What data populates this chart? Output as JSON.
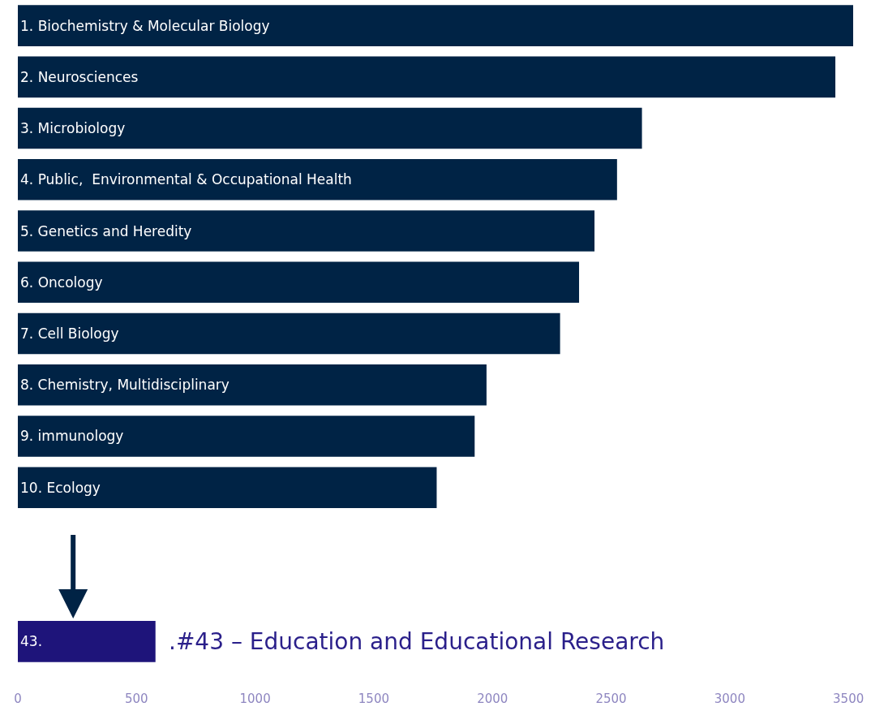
{
  "chart_data": {
    "type": "bar",
    "orientation": "horizontal",
    "categories": [
      "1. Biochemistry & Molecular Biology",
      "2. Neurosciences",
      "3. Microbiology",
      "4. Public,  Environmental & Occupational Health",
      "5. Genetics and Heredity",
      "6. Oncology",
      "7. Cell Biology",
      "8. Chemistry, Multidisciplinary",
      "9. immunology",
      "10. Ecology",
      null,
      null,
      "43."
    ],
    "values": [
      3520,
      3445,
      2630,
      2525,
      2430,
      2365,
      2285,
      1975,
      1925,
      1765,
      null,
      null,
      580
    ],
    "colors": [
      "#002345",
      "#002345",
      "#002345",
      "#002345",
      "#002345",
      "#002345",
      "#002345",
      "#002345",
      "#002345",
      "#002345",
      "#002345",
      "#002345",
      "#1e147a"
    ],
    "xlim": [
      0,
      3520
    ],
    "xticks": [
      0,
      500,
      1000,
      1500,
      2000,
      2500,
      3000,
      3500
    ],
    "annotations": [
      ".#43 – Education and Educational Research"
    ],
    "legend": false
  }
}
